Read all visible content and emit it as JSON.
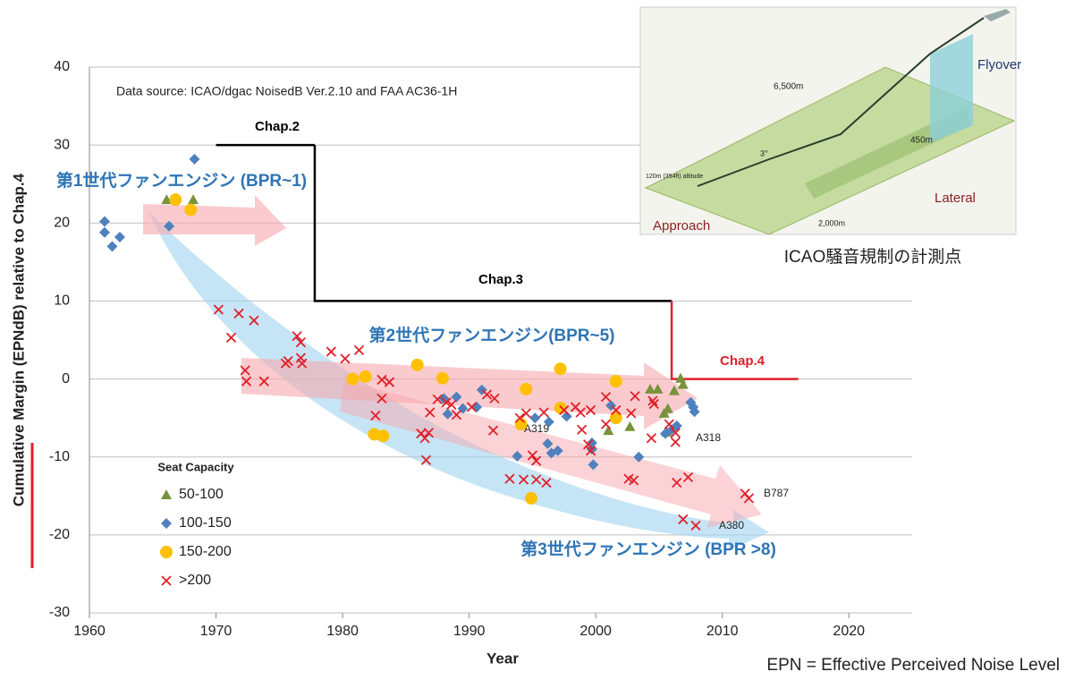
{
  "chart_data": {
    "type": "scatter",
    "note": "Data source: ICAO/dgac NoisedB Ver.2.10 and FAA AC36-1H",
    "x_label": "Year",
    "y_label": "Cumulative Margin (EPNdB)  relative to Chap.4",
    "xlim": [
      1960,
      2025
    ],
    "ylim": [
      -30,
      40
    ],
    "xticks": [
      1960,
      1970,
      1980,
      1990,
      2000,
      2010,
      2020
    ],
    "yticks": [
      -30,
      -20,
      -10,
      0,
      10,
      20,
      30,
      40
    ],
    "grid": true,
    "legend_title": "Seat Capacity",
    "series": [
      {
        "name": "50-100",
        "color": "#77933c",
        "marker": "triangle",
        "x": [
          1966.1,
          1968.2,
          2005.4,
          2005.7,
          2006.2,
          2006.7,
          2006.9,
          2004.3,
          2004.9,
          2001.0,
          2002.7,
          2005.6
        ],
        "values": [
          23.0,
          23.0,
          -4.4,
          -3.8,
          -1.5,
          0.1,
          -0.7,
          -1.3,
          -1.3,
          -6.6,
          -6.1,
          -6.8
        ]
      },
      {
        "name": "100-150",
        "color": "#4f81bd",
        "marker": "diamond",
        "x": [
          1961.2,
          1961.2,
          1961.8,
          1962.4,
          1968.3,
          1966.3,
          1988.0,
          1988.3,
          1989.0,
          1989.5,
          1990.6,
          1991.0,
          1993.8,
          1995.2,
          1996.2,
          1996.5,
          1997.0,
          1996.3,
          1997.7,
          1999.7,
          1999.8,
          2001.2,
          2003.4,
          2006.0,
          2006.4,
          2007.5,
          2007.7,
          2007.8,
          2005.5,
          1999.7
        ],
        "values": [
          20.2,
          18.8,
          17.0,
          18.2,
          28.2,
          19.6,
          -2.5,
          -4.5,
          -2.3,
          -3.8,
          -3.6,
          -1.4,
          -9.9,
          -5.0,
          -8.3,
          -9.5,
          -9.2,
          -5.5,
          -4.8,
          -8.2,
          -11.0,
          -3.4,
          -10.0,
          -6.5,
          -6.0,
          -3.0,
          -3.6,
          -4.2,
          -7.0,
          -9.0
        ]
      },
      {
        "name": "150-200",
        "color": "#ffc000",
        "marker": "circle",
        "x": [
          1966.8,
          1968.0,
          1980.8,
          1981.8,
          1982.5,
          1983.2,
          1985.9,
          1987.9,
          1994.1,
          1994.5,
          1994.9,
          1997.2,
          1997.2,
          2001.6,
          2001.6
        ],
        "values": [
          23.0,
          21.7,
          0.0,
          0.3,
          -7.1,
          -7.3,
          1.8,
          0.1,
          -5.8,
          -1.3,
          -15.3,
          1.3,
          -3.7,
          -0.3,
          -5.0
        ]
      },
      {
        "name": ">200",
        "color": "#e0202a",
        "marker": "x",
        "x": [
          1970.2,
          1971.2,
          1971.8,
          1972.3,
          1972.4,
          1973.0,
          1973.8,
          1975.5,
          1975.7,
          1976.4,
          1976.7,
          1976.7,
          1976.8,
          1979.1,
          1980.2,
          1981.3,
          1982.6,
          1983.1,
          1983.1,
          1983.7,
          1986.2,
          1986.5,
          1986.6,
          1986.8,
          1986.9,
          1987.5,
          1988.2,
          1988.6,
          1989.0,
          1990.2,
          1991.4,
          1992.0,
          1991.9,
          1993.2,
          1994.3,
          1994.0,
          1994.5,
          1995.0,
          1995.3,
          1995.3,
          1995.9,
          1996.1,
          1997.5,
          1998.4,
          1998.8,
          1998.9,
          1999.4,
          1999.6,
          1999.6,
          2000.8,
          2000.8,
          2001.6,
          2002.6,
          2003.0,
          2003.1,
          2002.8,
          2004.4,
          2004.5,
          2004.6,
          2005.8,
          2006.3,
          2006.3,
          2006.4,
          2006.9,
          2007.3,
          2007.9,
          2011.8,
          2012.1
        ],
        "values": [
          8.9,
          5.3,
          8.4,
          1.1,
          -0.3,
          7.5,
          -0.3,
          2.0,
          2.3,
          5.5,
          4.7,
          2.7,
          2.0,
          3.5,
          2.6,
          3.7,
          -4.7,
          -0.1,
          -2.5,
          -0.4,
          -7.0,
          -7.6,
          -10.4,
          -6.9,
          -4.3,
          -2.6,
          -3.0,
          -3.3,
          -4.6,
          -3.6,
          -2.0,
          -2.5,
          -6.6,
          -12.8,
          -12.9,
          -5.0,
          -4.4,
          -9.8,
          -12.9,
          -10.5,
          -4.3,
          -13.3,
          -4.0,
          -3.6,
          -4.3,
          -6.5,
          -8.4,
          -9.2,
          -4.0,
          -2.3,
          -5.8,
          -4.0,
          -12.8,
          -13.0,
          -2.2,
          -4.4,
          -7.6,
          -2.8,
          -3.2,
          -5.8,
          -6.9,
          -8.1,
          -13.3,
          -18.0,
          -12.6,
          -18.8,
          -14.7,
          -15.3
        ]
      }
    ],
    "limit_lines": [
      {
        "name": "Chap.2",
        "color": "#000000",
        "x": [
          1970,
          1977.8
        ],
        "values": [
          30,
          30
        ]
      },
      {
        "name": "Chap.3",
        "color": "#000000",
        "x": [
          1977.8,
          1977.8,
          2006
        ],
        "values": [
          30,
          10,
          10
        ]
      },
      {
        "name": "Chap.4",
        "color": "#e0202a",
        "x": [
          2006,
          2006,
          2016
        ],
        "values": [
          10,
          0,
          0
        ]
      }
    ],
    "annotations": [
      "第1世代ファンエンジン (BPR~1)",
      "第2世代ファンエンジン(BPR~5)",
      "第3世代ファンエンジン (BPR >8)",
      "A319",
      "A318",
      "B787",
      "A380"
    ]
  },
  "inset": {
    "caption": "ICAO騒音規制の計測点",
    "labels": [
      "6,500m",
      "Flyover",
      "450m",
      "Lateral",
      "3°",
      "120m (394ft) altitude",
      "Approach",
      "2,000m"
    ]
  },
  "footnote": "EPN = Effective Perceived Noise Level"
}
